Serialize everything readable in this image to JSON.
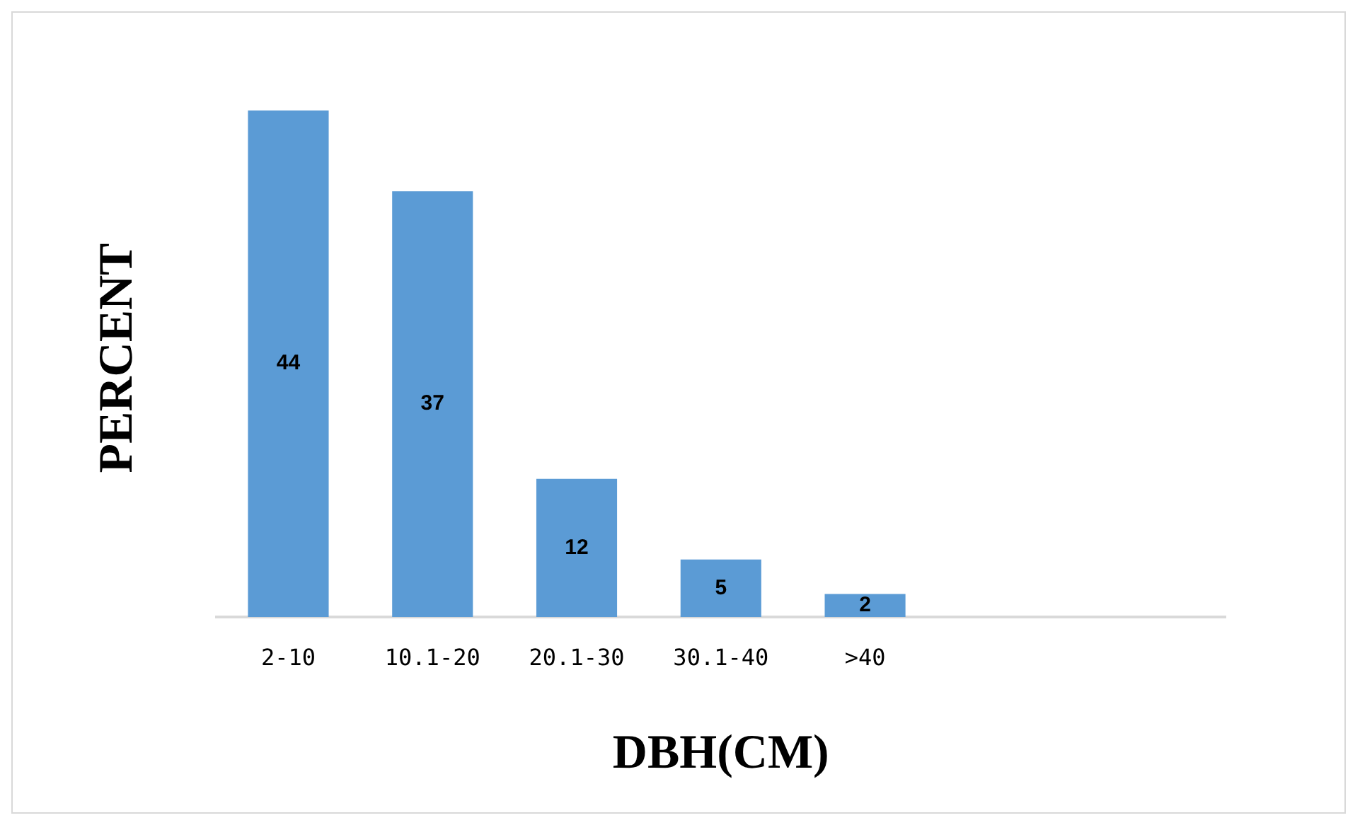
{
  "chart_data": {
    "type": "bar",
    "xlabel": "DBH(CM)",
    "ylabel": "PERCENT",
    "categories": [
      "2-10",
      "10.1-20",
      "20.1-30",
      "30.1-40",
      ">40",
      null,
      null
    ],
    "values": [
      44,
      37,
      12,
      5,
      2,
      null,
      null
    ],
    "color": "#5b9bd5",
    "data_labels": true,
    "grid": false,
    "legend": false,
    "tick_labels": "x"
  }
}
